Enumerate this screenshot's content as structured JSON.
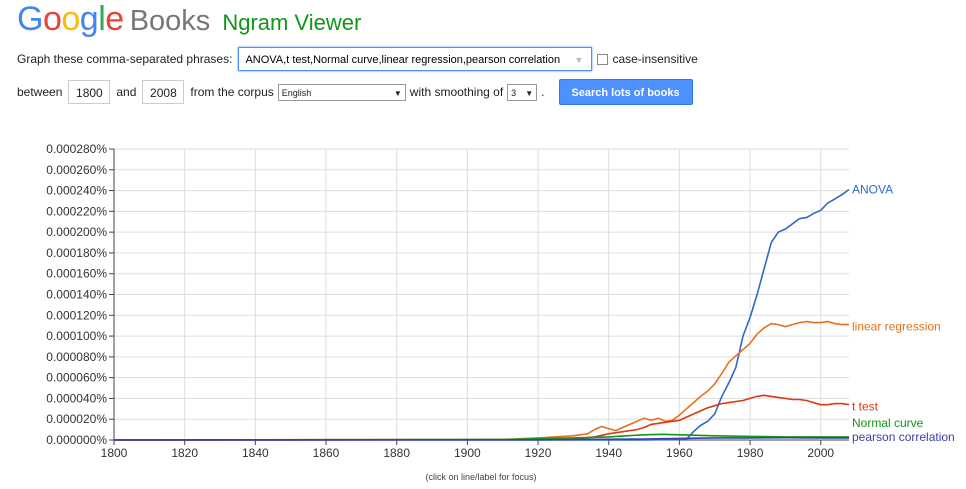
{
  "header": {
    "logo_letters": [
      "G",
      "o",
      "o",
      "g",
      "l",
      "e"
    ],
    "logo_colors": [
      "#4285f4",
      "#ea4335",
      "#fbbc05",
      "#4285f4",
      "#34a853",
      "#ea4335"
    ],
    "books": "Books",
    "title": "Ngram Viewer"
  },
  "form": {
    "graph_label": "Graph these comma-separated phrases:",
    "query": "ANOVA,t test,Normal curve,linear regression,pearson correlation",
    "case_insensitive_label": "case-insensitive",
    "between_label": "between",
    "year_start": "1800",
    "and_label": "and",
    "year_end": "2008",
    "corpus_label": "from the corpus",
    "corpus": "English",
    "smoothing_label": "with smoothing of",
    "smoothing": "3",
    "period": ".",
    "search_button": "Search lots of books"
  },
  "chart_data": {
    "type": "line",
    "xlim": [
      1800,
      2008
    ],
    "ylim": [
      0,
      0.00028
    ],
    "x_ticks": [
      "1800",
      "1820",
      "1840",
      "1860",
      "1880",
      "1900",
      "1920",
      "1940",
      "1960",
      "1980",
      "2000"
    ],
    "y_ticks": [
      "0.000000%",
      "0.000020%",
      "0.000040%",
      "0.000060%",
      "0.000080%",
      "0.000100%",
      "0.000120%",
      "0.000140%",
      "0.000160%",
      "0.000180%",
      "0.000200%",
      "0.000220%",
      "0.000240%",
      "0.000260%",
      "0.000280%"
    ],
    "grid": true,
    "footnote": "(click on line/label for focus)",
    "series": [
      {
        "name": "ANOVA",
        "color": "#3366cc",
        "x": [
          1800,
          1950,
          1960,
          1962,
          1964,
          1966,
          1968,
          1970,
          1972,
          1974,
          1976,
          1978,
          1980,
          1982,
          1984,
          1986,
          1988,
          1990,
          1992,
          1994,
          1996,
          1998,
          2000,
          2002,
          2004,
          2006,
          2008
        ],
        "y": [
          0,
          0,
          5e-07,
          1e-06,
          8e-06,
          1.4e-05,
          1.8e-05,
          2.5e-05,
          4.2e-05,
          5.5e-05,
          7e-05,
          0.0001,
          0.000118,
          0.00014,
          0.000165,
          0.00019,
          0.0002,
          0.000203,
          0.000208,
          0.000213,
          0.000214,
          0.000218,
          0.000221,
          0.000228,
          0.000232,
          0.000236,
          0.000241
        ]
      },
      {
        "name": "linear regression",
        "color": "#e8701a",
        "x": [
          1800,
          1910,
          1920,
          1930,
          1934,
          1936,
          1938,
          1940,
          1942,
          1944,
          1946,
          1948,
          1950,
          1952,
          1954,
          1956,
          1958,
          1960,
          1962,
          1964,
          1966,
          1968,
          1970,
          1972,
          1974,
          1976,
          1978,
          1980,
          1982,
          1984,
          1986,
          1988,
          1990,
          1992,
          1994,
          1996,
          1998,
          2000,
          2002,
          2004,
          2006,
          2008
        ],
        "y": [
          0,
          5e-07,
          2e-06,
          4e-06,
          6e-06,
          1e-05,
          1.3e-05,
          1.1e-05,
          9e-06,
          1.2e-05,
          1.5e-05,
          1.8e-05,
          2.1e-05,
          1.9e-05,
          2.1e-05,
          1.8e-05,
          1.9e-05,
          2.4e-05,
          3e-05,
          3.6e-05,
          4.2e-05,
          4.7e-05,
          5.4e-05,
          6.4e-05,
          7.5e-05,
          8.1e-05,
          8.7e-05,
          9.3e-05,
          0.000102,
          0.000108,
          0.000112,
          0.000111,
          0.000109,
          0.000111,
          0.000113,
          0.000114,
          0.000113,
          0.000113,
          0.000114,
          0.000112,
          0.000111,
          0.000111
        ]
      },
      {
        "name": "t test",
        "color": "#dc3912",
        "x": [
          1800,
          1930,
          1936,
          1940,
          1944,
          1948,
          1950,
          1952,
          1956,
          1960,
          1962,
          1964,
          1966,
          1968,
          1970,
          1972,
          1974,
          1976,
          1978,
          1980,
          1982,
          1984,
          1986,
          1988,
          1990,
          1992,
          1994,
          1996,
          1998,
          2000,
          2002,
          2004,
          2006,
          2008
        ],
        "y": [
          0,
          5e-07,
          3e-06,
          6e-06,
          8e-06,
          1e-05,
          1.2e-05,
          1.5e-05,
          1.7e-05,
          1.9e-05,
          2.2e-05,
          2.5e-05,
          2.8e-05,
          3.1e-05,
          3.3e-05,
          3.5e-05,
          3.6e-05,
          3.7e-05,
          3.8e-05,
          4e-05,
          4.2e-05,
          4.3e-05,
          4.2e-05,
          4.1e-05,
          4e-05,
          3.9e-05,
          3.9e-05,
          3.8e-05,
          3.6e-05,
          3.4e-05,
          3.4e-05,
          3.5e-05,
          3.5e-05,
          3.4e-05
        ]
      },
      {
        "name": "Normal curve",
        "color": "#109618",
        "x": [
          1800,
          1910,
          1930,
          1940,
          1945,
          1950,
          1955,
          1960,
          1965,
          1970,
          1980,
          1990,
          2000,
          2008
        ],
        "y": [
          0,
          5e-07,
          2e-06,
          3e-06,
          4e-06,
          5e-06,
          5.5e-06,
          5e-06,
          4.5e-06,
          4e-06,
          3.5e-06,
          3e-06,
          3e-06,
          3e-06
        ]
      },
      {
        "name": "pearson correlation",
        "color": "#3b3eac",
        "x": [
          1800,
          1920,
          1950,
          1960,
          1970,
          1980,
          1990,
          2000,
          2008
        ],
        "y": [
          0,
          2e-07,
          1e-06,
          1.5e-06,
          2e-06,
          2e-06,
          2.2e-06,
          2e-06,
          2e-06
        ]
      }
    ]
  }
}
